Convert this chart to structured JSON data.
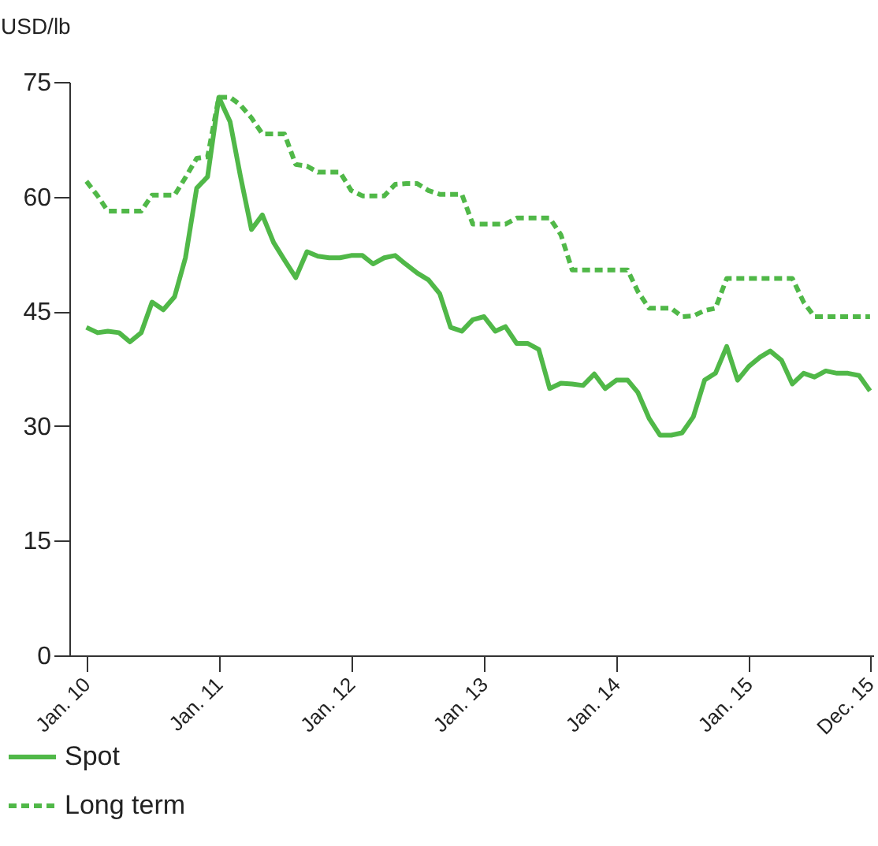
{
  "chart_data": {
    "type": "line",
    "ylabel": "USD/lb",
    "x": [
      "2010-01",
      "2010-02",
      "2010-03",
      "2010-04",
      "2010-05",
      "2010-06",
      "2010-07",
      "2010-08",
      "2010-09",
      "2010-10",
      "2010-11",
      "2010-12",
      "2011-01",
      "2011-02",
      "2011-03",
      "2011-04",
      "2011-05",
      "2011-06",
      "2011-07",
      "2011-08",
      "2011-09",
      "2011-10",
      "2011-11",
      "2011-12",
      "2012-01",
      "2012-02",
      "2012-03",
      "2012-04",
      "2012-05",
      "2012-06",
      "2012-07",
      "2012-08",
      "2012-09",
      "2012-10",
      "2012-11",
      "2012-12",
      "2013-01",
      "2013-02",
      "2013-03",
      "2013-04",
      "2013-05",
      "2013-06",
      "2013-07",
      "2013-08",
      "2013-09",
      "2013-10",
      "2013-11",
      "2013-12",
      "2014-01",
      "2014-02",
      "2014-03",
      "2014-04",
      "2014-05",
      "2014-06",
      "2014-07",
      "2014-08",
      "2014-09",
      "2014-10",
      "2014-11",
      "2014-12",
      "2015-01",
      "2015-02",
      "2015-03",
      "2015-04",
      "2015-05",
      "2015-06",
      "2015-07",
      "2015-08",
      "2015-09",
      "2015-10",
      "2015-11",
      "2015-12"
    ],
    "series": [
      {
        "name": "Spot",
        "color": "#50b848",
        "line_style": "solid",
        "values": [
          42.9,
          42.2,
          42.4,
          42.2,
          41.0,
          42.2,
          46.2,
          45.2,
          46.9,
          52.0,
          61.1,
          62.6,
          73.0,
          69.8,
          62.8,
          55.7,
          57.6,
          54.0,
          51.7,
          49.4,
          52.8,
          52.2,
          52.0,
          52.0,
          52.3,
          52.3,
          51.2,
          52.0,
          52.3,
          51.1,
          50.0,
          49.1,
          47.3,
          42.9,
          42.4,
          43.9,
          44.3,
          42.4,
          43.0,
          40.8,
          40.8,
          40.0,
          34.9,
          35.6,
          35.5,
          35.3,
          36.8,
          34.9,
          36.0,
          36.0,
          34.4,
          31.0,
          28.8,
          28.8,
          29.1,
          31.2,
          36.0,
          36.9,
          40.4,
          36.0,
          37.8,
          39.0,
          39.8,
          38.6,
          35.5,
          36.9,
          36.4,
          37.2,
          36.9,
          36.9,
          36.6,
          34.6
        ]
      },
      {
        "name": "Long term",
        "color": "#50b848",
        "line_style": "dashed",
        "values": [
          62.0,
          60.1,
          58.1,
          58.1,
          58.1,
          58.1,
          60.2,
          60.2,
          60.2,
          62.5,
          65.0,
          65.2,
          73.0,
          73.0,
          72.0,
          70.3,
          68.2,
          68.2,
          68.2,
          64.2,
          64.0,
          63.2,
          63.2,
          63.2,
          60.8,
          60.1,
          60.1,
          60.1,
          61.6,
          61.7,
          61.7,
          60.8,
          60.3,
          60.3,
          60.3,
          56.4,
          56.4,
          56.4,
          56.4,
          57.2,
          57.2,
          57.2,
          57.2,
          55.0,
          50.4,
          50.4,
          50.4,
          50.4,
          50.4,
          50.4,
          47.6,
          45.4,
          45.4,
          45.4,
          44.3,
          44.4,
          45.1,
          45.4,
          49.3,
          49.3,
          49.3,
          49.3,
          49.3,
          49.3,
          49.3,
          46.2,
          44.3,
          44.3,
          44.3,
          44.3,
          44.3,
          44.3
        ]
      }
    ],
    "xlim": [
      "2009-11-15",
      "2015-12-10"
    ],
    "xticks": [
      {
        "value": "2010-01",
        "label": "Jan. 10"
      },
      {
        "value": "2011-01",
        "label": "Jan. 11"
      },
      {
        "value": "2012-01",
        "label": "Jan. 12"
      },
      {
        "value": "2013-01",
        "label": "Jan. 13"
      },
      {
        "value": "2014-01",
        "label": "Jan. 14"
      },
      {
        "value": "2015-01",
        "label": "Jan. 15"
      },
      {
        "value": "2015-12",
        "label": "Dec. 15"
      }
    ],
    "ylim": [
      0,
      75
    ],
    "yticks": [
      0,
      15,
      30,
      45,
      60,
      75
    ],
    "grid": false,
    "marker": "none",
    "legend": "bottom left"
  }
}
